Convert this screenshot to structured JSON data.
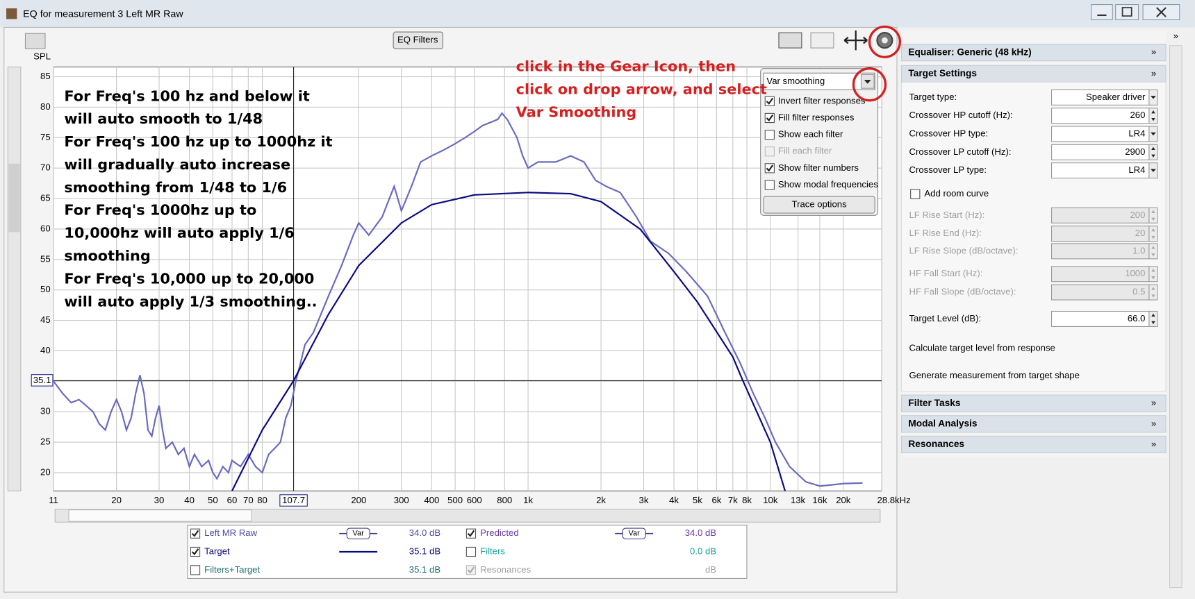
{
  "window": {
    "title": "EQ for measurement 3 Left MR Raw"
  },
  "toolbar": {
    "eq_filters": "EQ Filters"
  },
  "chart_data": {
    "type": "line",
    "y_label": "SPL",
    "log_x": true,
    "grid": true,
    "xlim": [
      11,
      28800
    ],
    "ylim": [
      17,
      86.6
    ],
    "xticks": [
      11,
      20,
      30,
      40,
      50,
      60,
      70,
      80,
      200,
      300,
      400,
      500,
      600,
      800,
      {
        "value": 1000,
        "label": "1k"
      },
      {
        "value": 2000,
        "label": "2k"
      },
      {
        "value": 3000,
        "label": "3k"
      },
      {
        "value": 4000,
        "label": "4k"
      },
      {
        "value": 5000,
        "label": "5k"
      },
      {
        "value": 6000,
        "label": "6k"
      },
      {
        "value": 7000,
        "label": "7k"
      },
      {
        "value": 8000,
        "label": "8k"
      },
      {
        "value": 10000,
        "label": "10k"
      },
      {
        "value": 13000,
        "label": "13k"
      },
      {
        "value": 16000,
        "label": "16k"
      },
      {
        "value": 20000,
        "label": "20k"
      },
      {
        "value": 28800,
        "label": "28.8kHz"
      }
    ],
    "yticks": [
      20,
      25,
      30,
      35,
      40,
      45,
      50,
      55,
      60,
      65,
      70,
      75,
      80,
      85
    ],
    "cursor": {
      "x": 107.7,
      "y": 35.1
    },
    "series": [
      {
        "name": "Left MR Raw",
        "color": "#6a6ac0",
        "x": [
          11,
          12,
          13,
          14,
          15,
          16,
          17,
          18,
          19,
          20,
          21,
          22,
          23,
          24,
          25,
          26,
          27,
          28,
          29,
          30,
          31,
          32,
          34,
          36,
          38,
          40,
          42,
          45,
          48,
          50,
          52,
          55,
          58,
          60,
          65,
          70,
          75,
          80,
          85,
          90,
          95,
          100,
          105,
          110,
          115,
          120,
          130,
          150,
          170,
          190,
          200,
          220,
          250,
          280,
          300,
          330,
          360,
          400,
          450,
          500,
          550,
          600,
          650,
          700,
          750,
          780,
          820,
          900,
          950,
          1000,
          1100,
          1300,
          1500,
          1700,
          1900,
          2100,
          2400,
          2800,
          3200,
          3800,
          4500,
          5500,
          6500,
          7500,
          8500,
          9500,
          10500,
          12000,
          14000,
          16000,
          18000,
          20000,
          24000
        ],
        "values": [
          35,
          33,
          31.5,
          32,
          31,
          30,
          28,
          27,
          30,
          32,
          30,
          27,
          29,
          33,
          36,
          33,
          27,
          26,
          29,
          31,
          27,
          24,
          25,
          23,
          24,
          21,
          23,
          21,
          22,
          20,
          19,
          21,
          20,
          22,
          21,
          23,
          21,
          20,
          23,
          24,
          25,
          29,
          31,
          35,
          38,
          41,
          43,
          49,
          54,
          59,
          61,
          59,
          62,
          67,
          63,
          67,
          71,
          72,
          73,
          74,
          75,
          76,
          77,
          77.5,
          78,
          79,
          78,
          75,
          72,
          70,
          71,
          71,
          72,
          71,
          68,
          67,
          66,
          62,
          58,
          56,
          53,
          49,
          43,
          38,
          33,
          29,
          25,
          21,
          18.5,
          17.8,
          18,
          18.2,
          18.3
        ]
      },
      {
        "name": "Target",
        "color": "#0a0a80",
        "x": [
          60,
          80,
          107.7,
          150,
          200,
          300,
          400,
          600,
          1000,
          1500,
          2000,
          2900,
          4000,
          5000,
          7000,
          7700,
          10000,
          11500
        ],
        "values": [
          17,
          27,
          35.1,
          46,
          54,
          61,
          64,
          65.6,
          66,
          65.8,
          64.5,
          60,
          53,
          48,
          39,
          35.1,
          25,
          17
        ]
      }
    ]
  },
  "annotations": {
    "instructions": [
      "For Freq's 100 hz and below it",
      "will auto smooth to 1/48",
      "For Freq's 100 hz up to 1000hz it",
      "will gradually auto increase",
      "smoothing from 1/48 to 1/6",
      "For Freq's 1000hz up to",
      "10,000hz will auto apply 1/6",
      "smoothing",
      "For Freq's 10,000 up to 20,000",
      "will auto apply 1/3 smoothing.."
    ],
    "callout": [
      "click in the Gear Icon, then",
      "click on drop arrow, and select",
      "Var Smoothing"
    ]
  },
  "trace_menu": {
    "dropdown": "Var smoothing",
    "options": [
      {
        "label": "Invert filter responses",
        "checked": true,
        "disabled": false
      },
      {
        "label": "Fill filter responses",
        "checked": true,
        "disabled": false
      },
      {
        "label": "Show each filter",
        "checked": false,
        "disabled": false
      },
      {
        "label": "Fill each filter",
        "checked": false,
        "disabled": true
      },
      {
        "label": "Show filter numbers",
        "checked": true,
        "disabled": false
      },
      {
        "label": "Show modal frequencies",
        "checked": false,
        "disabled": false
      }
    ],
    "button": "Trace options"
  },
  "legend_table": {
    "style_text": "Var",
    "entries": [
      {
        "checked": true,
        "style": "var",
        "level": "34.0 dB",
        "color": "#4a4aa8"
      },
      {
        "label": "Predicted",
        "checked": true,
        "style": "var",
        "level": "34.0 dB",
        "color": "#6a3aa8"
      },
      {
        "checked": true,
        "style": "line",
        "level": "35.1 dB",
        "color": "#0a0a80"
      },
      {
        "label": "Filters",
        "checked": false,
        "style": "none",
        "level": "0.0 dB",
        "color": "#20a0a0"
      },
      {
        "label": "Filters+Target",
        "checked": false,
        "style": "none",
        "level": "35.1 dB",
        "color": "#207070"
      },
      {
        "label": "Resonances",
        "checked": true,
        "style": "none",
        "level": "dB",
        "color": "#a0a0a0"
      }
    ]
  },
  "side_panel": {
    "equaliser": "Equaliser: Generic (48 kHz)",
    "target_settings": "Target Settings",
    "rows": [
      {
        "label": "Target type:",
        "value": "Speaker driver",
        "control": "select",
        "disabled": false
      },
      {
        "label": "Crossover HP cutoff (Hz):",
        "value": "260",
        "control": "spin",
        "disabled": false
      },
      {
        "label": "Crossover HP type:",
        "value": "LR4",
        "control": "select",
        "disabled": false
      },
      {
        "label": "Crossover LP cutoff (Hz):",
        "value": "2900",
        "control": "spin",
        "disabled": false
      },
      {
        "label": "Crossover LP type:",
        "value": "LR4",
        "control": "select",
        "disabled": false
      },
      {
        "label": "Add room curve",
        "control": "checkbox",
        "checked": false,
        "disabled": false
      },
      {
        "label": "LF Rise Start (Hz):",
        "value": "200",
        "control": "spin",
        "disabled": true
      },
      {
        "label": "LF Rise End (Hz):",
        "value": "20",
        "control": "spin",
        "disabled": true
      },
      {
        "label": "LF Rise Slope (dB/octave):",
        "value": "1.0",
        "control": "spin",
        "disabled": true
      },
      {
        "label": "HF Fall Start (Hz):",
        "value": "1000",
        "control": "spin",
        "disabled": true
      },
      {
        "label": "HF Fall Slope (dB/octave):",
        "value": "0.5",
        "control": "spin",
        "disabled": true
      },
      {
        "label": "Target Level (dB):",
        "value": "66.0",
        "control": "spin",
        "disabled": false
      }
    ],
    "actions": [
      "Calculate target level from response",
      "Generate measurement from target shape"
    ],
    "sections": [
      "Filter Tasks",
      "Modal Analysis",
      "Resonances"
    ]
  }
}
